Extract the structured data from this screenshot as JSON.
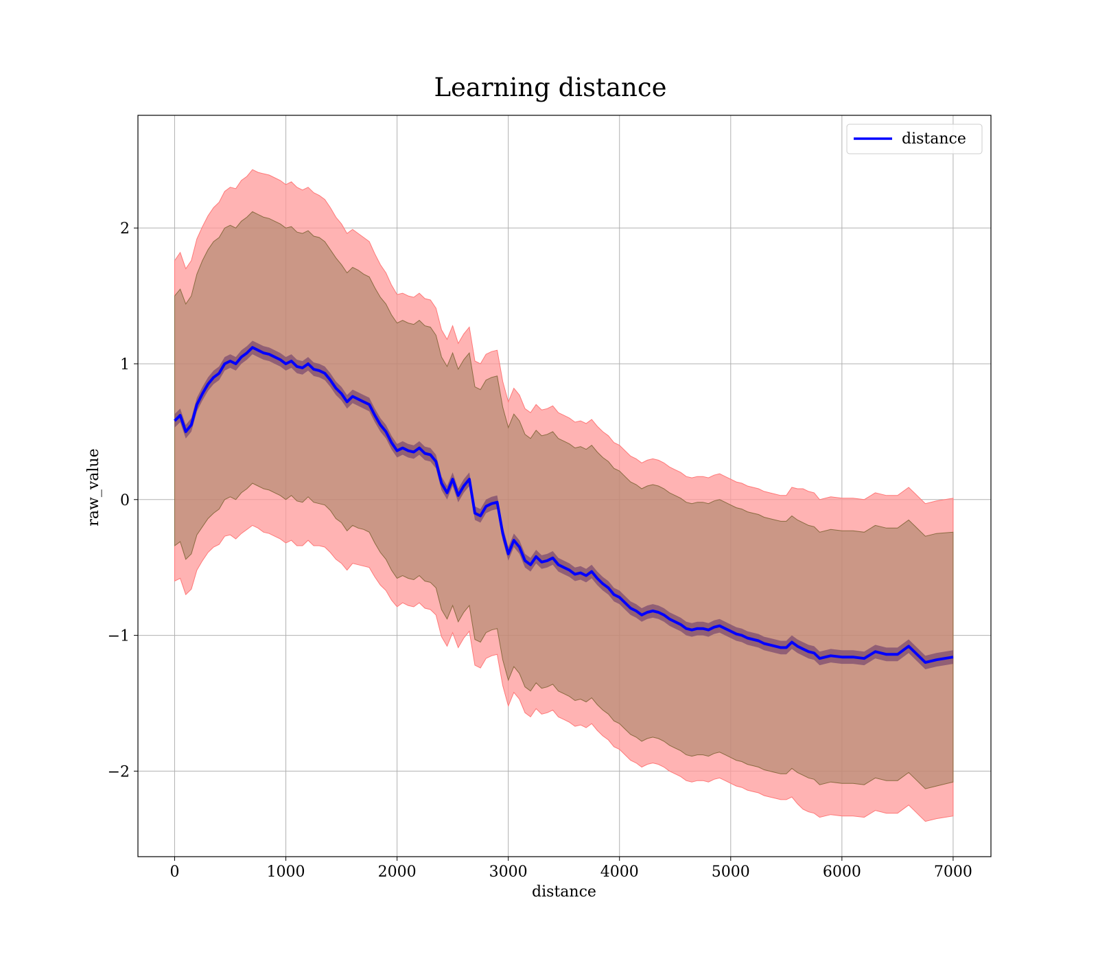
{
  "chart_data": {
    "type": "line",
    "title": "Learning distance",
    "xlabel": "distance",
    "ylabel": "raw_value",
    "xlim": [
      -330,
      7340
    ],
    "ylim": [
      -2.63,
      2.83
    ],
    "xticks": [
      0,
      1000,
      2000,
      3000,
      4000,
      5000,
      6000,
      7000
    ],
    "xtick_labels": [
      "0",
      "1000",
      "2000",
      "3000",
      "4000",
      "5000",
      "6000",
      "7000"
    ],
    "yticks": [
      -2,
      -1,
      0,
      1,
      2
    ],
    "ytick_labels": [
      "−2",
      "−1",
      "0",
      "1",
      "2"
    ],
    "grid": true,
    "legend": {
      "position": "top-right",
      "entries": [
        {
          "label": "distance",
          "color": "#0000ff"
        }
      ]
    },
    "colors": {
      "line": "#0000ff",
      "band_outer": "#ff9999",
      "band_inner": "#a08060",
      "band_near": "#6a3a6a"
    },
    "series": [
      {
        "name": "distance",
        "x": [
          0,
          50,
          100,
          150,
          200,
          250,
          300,
          350,
          400,
          450,
          500,
          550,
          600,
          650,
          700,
          750,
          800,
          850,
          900,
          950,
          1000,
          1050,
          1100,
          1150,
          1200,
          1250,
          1300,
          1350,
          1400,
          1450,
          1500,
          1550,
          1600,
          1650,
          1700,
          1750,
          1800,
          1850,
          1900,
          1950,
          2000,
          2050,
          2100,
          2150,
          2200,
          2250,
          2300,
          2350,
          2400,
          2450,
          2500,
          2550,
          2600,
          2650,
          2700,
          2750,
          2800,
          2850,
          2900,
          2950,
          3000,
          3050,
          3100,
          3150,
          3200,
          3250,
          3300,
          3350,
          3400,
          3450,
          3500,
          3550,
          3600,
          3650,
          3700,
          3750,
          3800,
          3850,
          3900,
          3950,
          4000,
          4050,
          4100,
          4150,
          4200,
          4250,
          4300,
          4350,
          4400,
          4450,
          4500,
          4550,
          4600,
          4650,
          4700,
          4750,
          4800,
          4850,
          4900,
          4950,
          5000,
          5050,
          5100,
          5150,
          5200,
          5250,
          5300,
          5350,
          5400,
          5450,
          5500,
          5550,
          5600,
          5650,
          5700,
          5750,
          5800,
          5900,
          6000,
          6100,
          6200,
          6300,
          6400,
          6500,
          6600,
          6650,
          6750,
          6850,
          7000
        ],
        "y": [
          0.58,
          0.62,
          0.5,
          0.55,
          0.7,
          0.78,
          0.85,
          0.9,
          0.93,
          1.0,
          1.02,
          1.0,
          1.05,
          1.08,
          1.12,
          1.1,
          1.08,
          1.07,
          1.05,
          1.03,
          1.0,
          1.02,
          0.98,
          0.97,
          1.0,
          0.96,
          0.95,
          0.93,
          0.88,
          0.82,
          0.78,
          0.72,
          0.76,
          0.74,
          0.72,
          0.7,
          0.62,
          0.55,
          0.5,
          0.42,
          0.36,
          0.38,
          0.36,
          0.35,
          0.38,
          0.34,
          0.33,
          0.28,
          0.12,
          0.05,
          0.15,
          0.03,
          0.1,
          0.15,
          -0.1,
          -0.12,
          -0.05,
          -0.03,
          -0.02,
          -0.25,
          -0.4,
          -0.3,
          -0.35,
          -0.45,
          -0.48,
          -0.42,
          -0.46,
          -0.45,
          -0.43,
          -0.48,
          -0.5,
          -0.52,
          -0.55,
          -0.54,
          -0.56,
          -0.53,
          -0.58,
          -0.62,
          -0.65,
          -0.7,
          -0.72,
          -0.76,
          -0.8,
          -0.82,
          -0.85,
          -0.83,
          -0.82,
          -0.83,
          -0.85,
          -0.88,
          -0.9,
          -0.92,
          -0.95,
          -0.96,
          -0.95,
          -0.95,
          -0.96,
          -0.94,
          -0.93,
          -0.95,
          -0.97,
          -0.99,
          -1.0,
          -1.02,
          -1.03,
          -1.04,
          -1.06,
          -1.07,
          -1.08,
          -1.09,
          -1.09,
          -1.05,
          -1.08,
          -1.1,
          -1.12,
          -1.13,
          -1.17,
          -1.15,
          -1.16,
          -1.16,
          -1.17,
          -1.12,
          -1.14,
          -1.14,
          -1.08,
          -1.12,
          -1.2,
          -1.18,
          -1.16
        ],
        "std_outer": [
          1.18,
          1.2,
          1.2,
          1.21,
          1.22,
          1.23,
          1.24,
          1.25,
          1.26,
          1.27,
          1.28,
          1.29,
          1.3,
          1.3,
          1.31,
          1.31,
          1.32,
          1.32,
          1.32,
          1.32,
          1.32,
          1.32,
          1.32,
          1.31,
          1.3,
          1.3,
          1.29,
          1.28,
          1.27,
          1.26,
          1.25,
          1.24,
          1.23,
          1.22,
          1.21,
          1.2,
          1.19,
          1.18,
          1.17,
          1.16,
          1.15,
          1.14,
          1.14,
          1.14,
          1.14,
          1.14,
          1.14,
          1.13,
          1.13,
          1.13,
          1.13,
          1.12,
          1.12,
          1.12,
          1.12,
          1.12,
          1.12,
          1.12,
          1.12,
          1.12,
          1.12,
          1.12,
          1.12,
          1.12,
          1.12,
          1.12,
          1.12,
          1.12,
          1.12,
          1.12,
          1.12,
          1.12,
          1.12,
          1.12,
          1.12,
          1.12,
          1.12,
          1.12,
          1.12,
          1.12,
          1.12,
          1.12,
          1.12,
          1.12,
          1.12,
          1.12,
          1.12,
          1.12,
          1.12,
          1.12,
          1.12,
          1.12,
          1.12,
          1.12,
          1.12,
          1.12,
          1.12,
          1.12,
          1.12,
          1.12,
          1.12,
          1.12,
          1.12,
          1.12,
          1.12,
          1.12,
          1.12,
          1.12,
          1.12,
          1.12,
          1.12,
          1.14,
          1.16,
          1.18,
          1.18,
          1.18,
          1.17,
          1.17,
          1.17,
          1.17,
          1.17,
          1.17,
          1.17,
          1.17,
          1.17,
          1.17,
          1.17,
          1.17,
          1.17
        ],
        "std_inner": [
          0.92,
          0.93,
          0.94,
          0.95,
          0.96,
          0.98,
          0.99,
          1.0,
          1.0,
          1.0,
          1.0,
          1.0,
          1.0,
          1.0,
          1.0,
          1.0,
          1.0,
          1.0,
          1.0,
          1.0,
          1.0,
          0.99,
          0.99,
          0.99,
          0.98,
          0.98,
          0.98,
          0.97,
          0.96,
          0.96,
          0.95,
          0.95,
          0.95,
          0.95,
          0.94,
          0.94,
          0.94,
          0.94,
          0.94,
          0.94,
          0.94,
          0.94,
          0.94,
          0.94,
          0.94,
          0.94,
          0.94,
          0.93,
          0.93,
          0.93,
          0.93,
          0.93,
          0.93,
          0.93,
          0.93,
          0.93,
          0.93,
          0.93,
          0.93,
          0.93,
          0.93,
          0.93,
          0.93,
          0.93,
          0.93,
          0.93,
          0.93,
          0.93,
          0.93,
          0.93,
          0.93,
          0.93,
          0.93,
          0.93,
          0.93,
          0.93,
          0.93,
          0.93,
          0.93,
          0.93,
          0.93,
          0.93,
          0.93,
          0.93,
          0.93,
          0.93,
          0.93,
          0.93,
          0.93,
          0.93,
          0.93,
          0.93,
          0.93,
          0.93,
          0.93,
          0.93,
          0.93,
          0.93,
          0.93,
          0.93,
          0.93,
          0.93,
          0.93,
          0.93,
          0.93,
          0.93,
          0.93,
          0.93,
          0.93,
          0.93,
          0.93,
          0.93,
          0.93,
          0.93,
          0.93,
          0.93,
          0.93,
          0.93,
          0.93,
          0.93,
          0.93,
          0.93,
          0.93,
          0.93,
          0.93,
          0.93,
          0.93,
          0.93,
          0.92
        ],
        "std_near": 0.05
      }
    ]
  }
}
